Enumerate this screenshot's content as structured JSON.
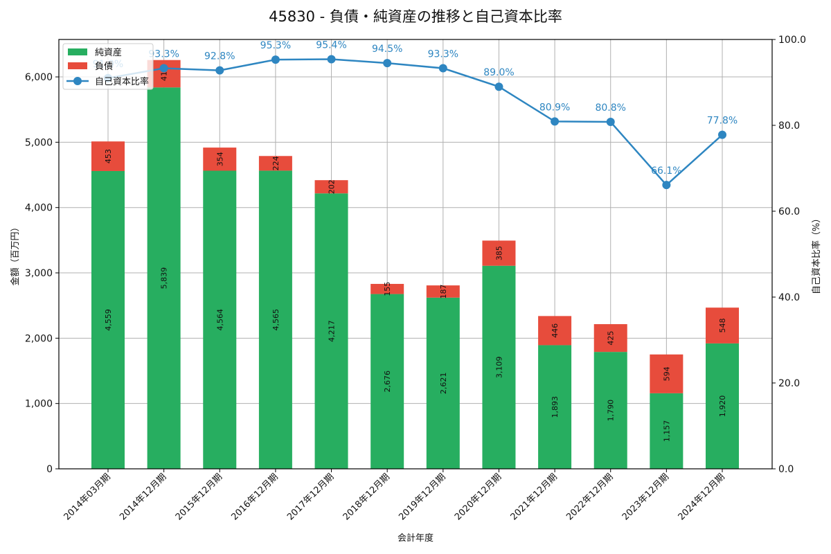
{
  "title": "45830 - 負債・純資産の推移と自己資本比率",
  "chart_data": {
    "type": "bar",
    "stacked": true,
    "title": "45830 - 負債・純資産の推移と自己資本比率",
    "xlabel": "会計年度",
    "ylabel": "金額（百万円）",
    "y2label": "自己資本比率（%）",
    "ylim": [
      0,
      6573
    ],
    "y2lim": [
      0,
      100
    ],
    "yticks": [
      0,
      1000,
      2000,
      3000,
      4000,
      5000,
      6000
    ],
    "ytick_labels": [
      "0",
      "1,000",
      "2,000",
      "3,000",
      "4,000",
      "5,000",
      "6,000"
    ],
    "y2ticks": [
      0,
      20,
      40,
      60,
      80,
      100
    ],
    "y2tick_labels": [
      "0.0",
      "20.0",
      "40.0",
      "60.0",
      "80.0",
      "100.0"
    ],
    "grid": true,
    "legend_position": "upper left",
    "categories": [
      "2014年03月期",
      "2014年12月期",
      "2015年12月期",
      "2016年12月期",
      "2017年12月期",
      "2018年12月期",
      "2019年12月期",
      "2020年12月期",
      "2021年12月期",
      "2022年12月期",
      "2023年12月期",
      "2024年12月期"
    ],
    "series": [
      {
        "name": "純資産",
        "type": "bar",
        "axis": "left",
        "color": "#27ae60",
        "values": [
          4559,
          5839,
          4564,
          4565,
          4217,
          2676,
          2621,
          3109,
          1893,
          1790,
          1157,
          1920
        ],
        "labels": [
          "4,559",
          "5,839",
          "4,564",
          "4,565",
          "4,217",
          "2,676",
          "2,621",
          "3,109",
          "1,893",
          "1,790",
          "1,157",
          "1,920"
        ]
      },
      {
        "name": "負債",
        "type": "bar",
        "axis": "left",
        "color": "#e74c3c",
        "values": [
          453,
          419,
          354,
          224,
          202,
          155,
          187,
          385,
          446,
          425,
          594,
          548
        ],
        "labels": [
          "453",
          "419",
          "354",
          "224",
          "202",
          "155",
          "187",
          "385",
          "446",
          "425",
          "594",
          "548"
        ]
      },
      {
        "name": "自己資本比率",
        "type": "line",
        "axis": "right",
        "color": "#2e86c1",
        "values": [
          91.0,
          93.3,
          92.8,
          95.3,
          95.4,
          94.5,
          93.3,
          89.0,
          80.9,
          80.8,
          66.1,
          77.8
        ],
        "labels": [
          "91.0%",
          "93.3%",
          "92.8%",
          "95.3%",
          "95.4%",
          "94.5%",
          "93.3%",
          "89.0%",
          "80.9%",
          "80.8%",
          "66.1%",
          "77.8%"
        ]
      }
    ]
  }
}
